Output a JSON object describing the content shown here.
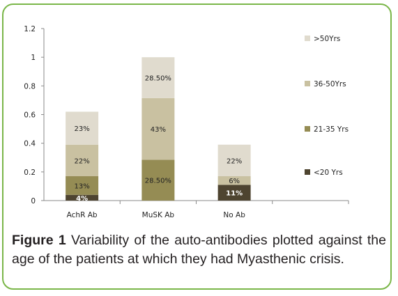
{
  "chart_data": {
    "type": "bar",
    "stacked": true,
    "categories": [
      "AchR Ab",
      "MuSK Ab",
      "No Ab"
    ],
    "series": [
      {
        "name": "<20 Yrs",
        "color": "#4e4430",
        "values": [
          0.04,
          0,
          0.11
        ],
        "labels": [
          "4%",
          "",
          "11%"
        ]
      },
      {
        "name": "21-35 Yrs",
        "color": "#958c54",
        "values": [
          0.13,
          0.285,
          0
        ],
        "labels": [
          "13%",
          "28.50%",
          ""
        ]
      },
      {
        "name": "36-50Yrs",
        "color": "#c9c1a1",
        "values": [
          0.22,
          0.43,
          0.06
        ],
        "labels": [
          "22%",
          "43%",
          "6%"
        ]
      },
      {
        "name": ">50Yrs",
        "color": "#e0dbce",
        "values": [
          0.23,
          0.285,
          0.22
        ],
        "labels": [
          "23%",
          "28.50%",
          "22%"
        ]
      }
    ],
    "ylim": [
      0,
      1.2
    ],
    "yticks": [
      "0",
      "0.2",
      "0.4",
      "0.6",
      "0.8",
      "1",
      "1.2"
    ],
    "legend_position": "right",
    "grid": false
  },
  "caption": {
    "label": "Figure 1",
    "text": " Variability of the auto-antibodies plotted against the age of the patients at which they had Myasthenic crisis."
  }
}
